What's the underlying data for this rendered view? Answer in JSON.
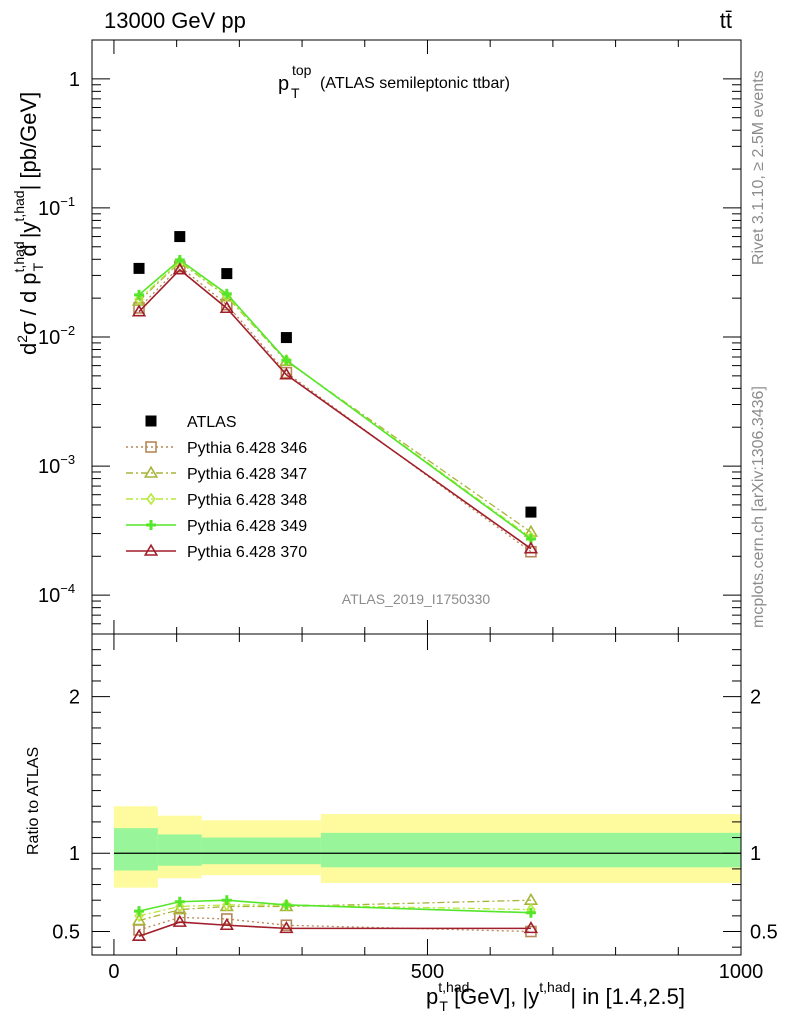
{
  "header": {
    "left": "13000 GeV pp",
    "right": "tt̄"
  },
  "title": {
    "main": "p",
    "sub": "T",
    "sup": "top",
    "rest": "(ATLAS semileptonic ttbar)"
  },
  "side_right_top": "Rivet 3.1.10, ≥ 2.5M events",
  "side_right_bottom": "mcplots.cern.ch [arXiv:1306.3436]",
  "watermark": "ATLAS_2019_I1750330",
  "colors": {
    "data": "#000000",
    "s346": "#b8875a",
    "s347": "#a8b43a",
    "s348": "#b8e83a",
    "s349": "#55e62a",
    "s370": "#a01f2a",
    "band_outer": "#fdfb9e",
    "band_inner": "#98f59a"
  },
  "chart_data": [
    {
      "type": "scatter",
      "panel": "main",
      "y_scale": "log",
      "ylim": [
        5e-05,
        2
      ],
      "y_ticks": [
        {
          "value": 1,
          "label": "1"
        },
        {
          "value": 0.1,
          "label": "10",
          "exp": "−1"
        },
        {
          "value": 0.01,
          "label": "10",
          "exp": "−2"
        },
        {
          "value": 0.001,
          "label": "10",
          "exp": "−3"
        },
        {
          "value": 0.0001,
          "label": "10",
          "exp": "−4"
        }
      ],
      "ylabel": "d²σ / d p_T^{t,had} d |y^{t,had}| [pb/GeV]",
      "legend_position": "lower-left",
      "series": [
        {
          "name": "ATLAS",
          "key": "data",
          "marker": "square",
          "line": "none",
          "x": [
            40,
            105,
            180,
            275,
            665
          ],
          "y": [
            0.034,
            0.06,
            0.031,
            0.0099,
            0.00044
          ]
        },
        {
          "name": "Pythia 6.428 346",
          "key": "s346",
          "marker": "open-square",
          "line": "dotted",
          "x": [
            40,
            105,
            180,
            275,
            665
          ],
          "y": [
            0.0168,
            0.0352,
            0.0178,
            0.0053,
            0.000217
          ]
        },
        {
          "name": "Pythia 6.428 347",
          "key": "s347",
          "marker": "open-triangle",
          "line": "dashdot",
          "x": [
            40,
            105,
            180,
            275,
            665
          ],
          "y": [
            0.019,
            0.038,
            0.0205,
            0.0065,
            0.000308
          ]
        },
        {
          "name": "Pythia 6.428 348",
          "key": "s348",
          "marker": "diamond",
          "line": "dashdot",
          "x": [
            40,
            105,
            180,
            275,
            665
          ],
          "y": [
            0.0196,
            0.0385,
            0.0208,
            0.0066,
            0.00028
          ]
        },
        {
          "name": "Pythia 6.428 349",
          "key": "s349",
          "marker": "plus",
          "line": "solid",
          "x": [
            40,
            105,
            180,
            275,
            665
          ],
          "y": [
            0.0212,
            0.0395,
            0.0216,
            0.0066,
            0.000272
          ]
        },
        {
          "name": "Pythia 6.428 370",
          "key": "s370",
          "marker": "open-triangle",
          "line": "solid",
          "x": [
            40,
            105,
            180,
            275,
            665
          ],
          "y": [
            0.0157,
            0.0332,
            0.0167,
            0.0051,
            0.000229
          ]
        }
      ]
    },
    {
      "type": "line",
      "panel": "ratio",
      "ylabel": "Ratio to ATLAS",
      "ylim": [
        0.35,
        2.4
      ],
      "y_ticks": [
        {
          "value": 0.5,
          "label": "0.5"
        },
        {
          "value": 1,
          "label": "1"
        },
        {
          "value": 2,
          "label": "2"
        }
      ],
      "xlim": [
        -35,
        1000
      ],
      "x_ticks": [
        {
          "value": 0,
          "label": "0"
        },
        {
          "value": 500,
          "label": "500"
        },
        {
          "value": 1000,
          "label": "1000"
        }
      ],
      "xlabel": "p_T^{t,had} [GeV], |y^{t,had}| in [1.4,2.5]",
      "bands": [
        {
          "x0": 0,
          "x1": 70,
          "outer": [
            0.78,
            1.3
          ],
          "inner": [
            0.89,
            1.16
          ]
        },
        {
          "x0": 70,
          "x1": 140,
          "outer": [
            0.84,
            1.24
          ],
          "inner": [
            0.92,
            1.12
          ]
        },
        {
          "x0": 140,
          "x1": 330,
          "outer": [
            0.86,
            1.21
          ],
          "inner": [
            0.93,
            1.1
          ]
        },
        {
          "x0": 330,
          "x1": 1000,
          "outer": [
            0.81,
            1.25
          ],
          "inner": [
            0.91,
            1.13
          ]
        }
      ],
      "series": [
        {
          "name": "Pythia 6.428 346",
          "key": "s346",
          "x": [
            40,
            105,
            180,
            275,
            665
          ],
          "y": [
            0.51,
            0.59,
            0.58,
            0.54,
            0.5
          ]
        },
        {
          "name": "Pythia 6.428 347",
          "key": "s347",
          "x": [
            40,
            105,
            180,
            275,
            665
          ],
          "y": [
            0.57,
            0.64,
            0.66,
            0.66,
            0.7
          ]
        },
        {
          "name": "Pythia 6.428 348",
          "key": "s348",
          "x": [
            40,
            105,
            180,
            275,
            665
          ],
          "y": [
            0.6,
            0.66,
            0.67,
            0.67,
            0.64
          ]
        },
        {
          "name": "Pythia 6.428 349",
          "key": "s349",
          "x": [
            40,
            105,
            180,
            275,
            665
          ],
          "y": [
            0.63,
            0.69,
            0.7,
            0.67,
            0.62
          ]
        },
        {
          "name": "Pythia 6.428 370",
          "key": "s370",
          "x": [
            40,
            105,
            180,
            275,
            665
          ],
          "y": [
            0.47,
            0.56,
            0.54,
            0.52,
            0.52
          ]
        }
      ]
    }
  ]
}
